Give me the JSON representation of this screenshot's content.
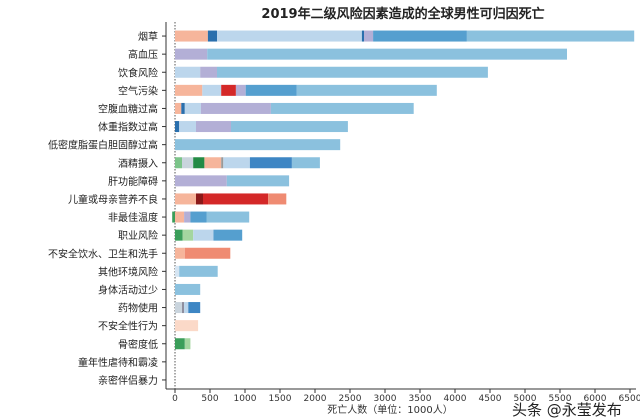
{
  "chart_data": {
    "type": "bar",
    "orientation": "horizontal",
    "stacked": true,
    "title": "2019年二级风险因素造成的全球男性可归因死亡",
    "xlabel": "死亡人数（单位：1000人）",
    "ylabel": "",
    "xlim": [
      0,
      6500
    ],
    "xticks": [
      0,
      500,
      1000,
      1500,
      2000,
      2500,
      3000,
      3500,
      4000,
      4500,
      5000,
      5500,
      6000,
      6500
    ],
    "grid": false,
    "categories": [
      "烟草",
      "高血压",
      "饮食风险",
      "空气污染",
      "空腹血糖过高",
      "体重指数过高",
      "低密度脂蛋白胆固醇过高",
      "酒精摄入",
      "肝功能障碍",
      "儿童或母亲营养不良",
      "非最佳温度",
      "职业风险",
      "不安全饮水、卫生和洗手",
      "其他环境风险",
      "身体活动过少",
      "药物使用",
      "不安全性行为",
      "骨密度低",
      "童年性虐待和霸凌",
      "亲密伴侣暴力"
    ],
    "segments": [
      [
        [
          470,
          "#f6b59b"
        ],
        [
          130,
          "#2a6fad"
        ],
        [
          2070,
          "#bcd6ec"
        ],
        [
          30,
          "#2a6fad"
        ],
        [
          130,
          "#b3afd6"
        ],
        [
          1340,
          "#559fcf"
        ],
        [
          2390,
          "#8bc1de"
        ]
      ],
      [
        [
          460,
          "#b3afd6"
        ],
        [
          5140,
          "#8bc1de"
        ]
      ],
      [
        [
          360,
          "#bcd6ec"
        ],
        [
          240,
          "#b3afd6"
        ],
        [
          3870,
          "#8bc1de"
        ]
      ],
      [
        [
          390,
          "#f6b59b"
        ],
        [
          270,
          "#bcd6ec"
        ],
        [
          210,
          "#d42828"
        ],
        [
          140,
          "#b3afd6"
        ],
        [
          730,
          "#559fcf"
        ],
        [
          2000,
          "#8bc1de"
        ]
      ],
      [
        [
          90,
          "#f6b59b"
        ],
        [
          50,
          "#2a6fad"
        ],
        [
          230,
          "#bcd6ec"
        ],
        [
          1000,
          "#b3afd6"
        ],
        [
          2040,
          "#8bc1de"
        ]
      ],
      [
        [
          60,
          "#2a6fad"
        ],
        [
          240,
          "#bcd6ec"
        ],
        [
          500,
          "#b3afd6"
        ],
        [
          1670,
          "#8bc1de"
        ]
      ],
      [
        [
          2360,
          "#8bc1de"
        ]
      ],
      [
        [
          100,
          "#7cc48a"
        ],
        [
          160,
          "#c9d4dd"
        ],
        [
          160,
          "#238b45"
        ],
        [
          240,
          "#f6b59b"
        ],
        [
          30,
          "#999999"
        ],
        [
          380,
          "#bcd6ec"
        ],
        [
          600,
          "#3d86c4"
        ],
        [
          400,
          "#8bc1de"
        ]
      ],
      [
        [
          740,
          "#b3afd6"
        ],
        [
          890,
          "#8bc1de"
        ]
      ],
      [
        [
          300,
          "#f6b59b"
        ],
        [
          100,
          "#8b1a1a"
        ],
        [
          930,
          "#d42828"
        ],
        [
          260,
          "#ef8b72"
        ]
      ],
      [
        [
          -40,
          "#3b9e5a"
        ],
        [
          130,
          "#f6b59b"
        ],
        [
          90,
          "#b3afd6"
        ],
        [
          230,
          "#559fcf"
        ],
        [
          610,
          "#8bc1de"
        ]
      ],
      [
        [
          110,
          "#3b9e5a"
        ],
        [
          150,
          "#a4d6a0"
        ],
        [
          290,
          "#bcd6ec"
        ],
        [
          410,
          "#559fcf"
        ]
      ],
      [
        [
          140,
          "#f6b59b"
        ],
        [
          650,
          "#ef8b72"
        ]
      ],
      [
        [
          60,
          "#d6e5f2"
        ],
        [
          550,
          "#8bc1de"
        ]
      ],
      [
        [
          360,
          "#8bc1de"
        ]
      ],
      [
        [
          100,
          "#c9d4dd"
        ],
        [
          30,
          "#8e8e9e"
        ],
        [
          60,
          "#bcd6ec"
        ],
        [
          170,
          "#3d86c4"
        ]
      ],
      [
        [
          330,
          "#fbd9c8"
        ]
      ],
      [
        [
          140,
          "#3b9e5a"
        ],
        [
          80,
          "#a4d6a0"
        ]
      ],
      [],
      []
    ]
  },
  "watermark": "头条 @永莹发布"
}
